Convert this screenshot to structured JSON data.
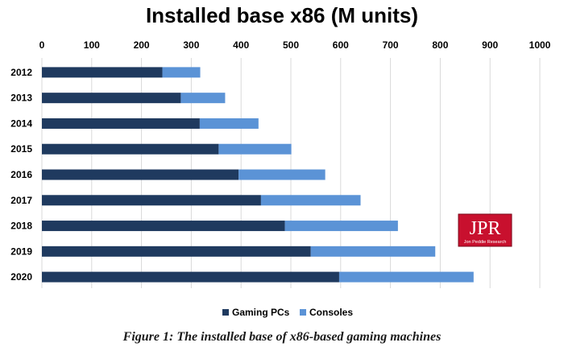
{
  "chart_data": {
    "type": "bar",
    "orientation": "horizontal",
    "stacked": true,
    "title": "Installed base x86 (M units)",
    "xlabel": "",
    "ylabel": "",
    "xlim": [
      0,
      1000
    ],
    "x_ticks": [
      0,
      100,
      200,
      300,
      400,
      500,
      600,
      700,
      800,
      900,
      1000
    ],
    "x_axis_position": "top",
    "grid": true,
    "legend_position": "bottom",
    "categories": [
      "2012",
      "2013",
      "2014",
      "2015",
      "2016",
      "2017",
      "2018",
      "2019",
      "2020"
    ],
    "series": [
      {
        "name": "Gaming PCs",
        "color": "#1f3a5f",
        "values": [
          242,
          279,
          317,
          355,
          395,
          440,
          488,
          540,
          597
        ]
      },
      {
        "name": "Consoles",
        "color": "#5b93d6",
        "values": [
          76,
          89,
          118,
          146,
          174,
          200,
          227,
          250,
          270
        ]
      }
    ]
  },
  "caption": "Figure 1: The installed base of x86-based gaming machines",
  "logo": {
    "text": "JPR",
    "subtext": "Jon Peddie Research",
    "bg_color": "#c8102e"
  }
}
